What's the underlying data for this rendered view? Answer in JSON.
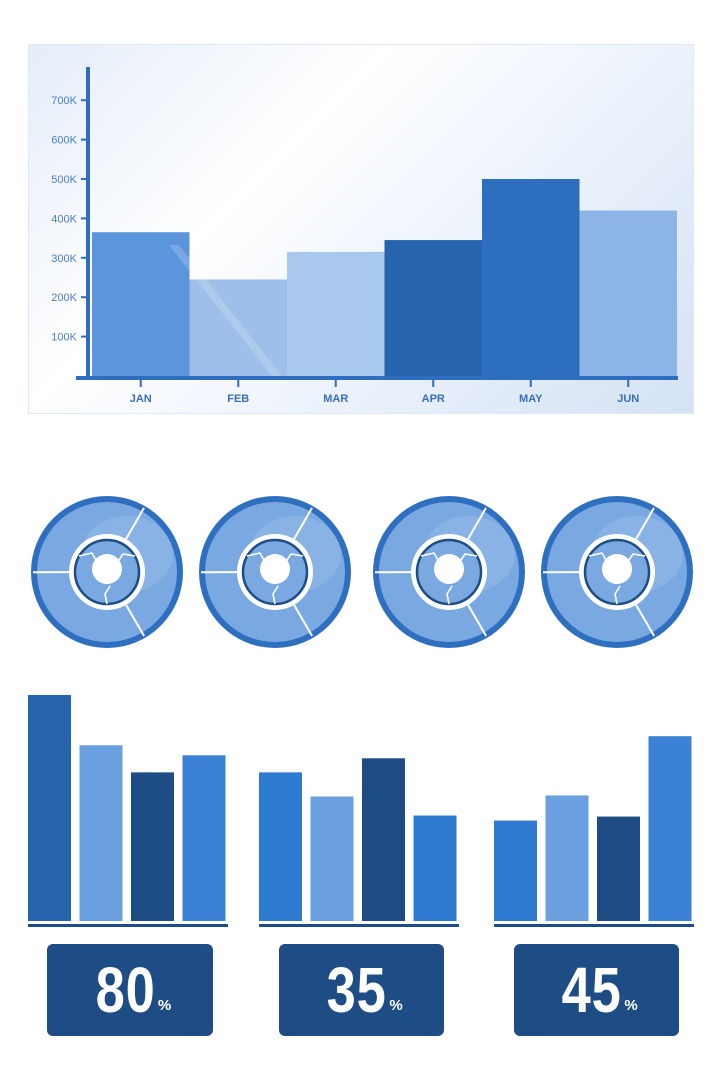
{
  "colors": {
    "axis": "#2e6dc0",
    "light": "#8db4e6",
    "medium": "#5f98dc",
    "bright": "#2e7ad0",
    "dark": "#1e4d85",
    "deep": "#2664ae",
    "ring_outer": "#2f6fc0",
    "ring_fill": "#7aa9e2"
  },
  "chart_data": [
    {
      "type": "bar",
      "categories": [
        "JAN",
        "FEB",
        "MAR",
        "APR",
        "MAY",
        "JUN"
      ],
      "values": [
        365000,
        245000,
        315000,
        345000,
        500000,
        420000
      ],
      "bar_colors": [
        "#5c95dc",
        "#9dbfe9",
        "#a9c8ee",
        "#2664ae",
        "#2c6fbf",
        "#8db4e6"
      ],
      "yticks": [
        "100K",
        "200K",
        "300K",
        "400K",
        "500K",
        "600K",
        "700K"
      ],
      "ylim": [
        0,
        800000
      ],
      "title": "",
      "xlabel": "",
      "ylabel": ""
    },
    {
      "type": "pie",
      "slices": [
        33.3,
        33.3,
        33.4
      ]
    },
    {
      "type": "pie",
      "slices": [
        33.3,
        33.3,
        33.4
      ]
    },
    {
      "type": "pie",
      "slices": [
        33.3,
        33.3,
        33.4
      ]
    },
    {
      "type": "pie",
      "slices": [
        33.3,
        33.3,
        33.4
      ]
    },
    {
      "type": "bar",
      "values": [
        225,
        175,
        148,
        165
      ],
      "bar_colors": [
        "#2664ae",
        "#6aa0e0",
        "#1e4d85",
        "#3b82d6"
      ],
      "ylim": [
        0,
        230
      ]
    },
    {
      "type": "bar",
      "values": [
        148,
        124,
        162,
        105
      ],
      "bar_colors": [
        "#2e7ad0",
        "#6aa0e0",
        "#1e4d85",
        "#2e7ad0"
      ],
      "ylim": [
        0,
        230
      ]
    },
    {
      "type": "bar",
      "values": [
        100,
        125,
        104,
        184
      ],
      "bar_colors": [
        "#2e7ad0",
        "#6aa0e0",
        "#1e4d85",
        "#3b82d6"
      ],
      "ylim": [
        0,
        230
      ]
    }
  ],
  "stats": [
    {
      "value": "80",
      "unit": "%"
    },
    {
      "value": "35",
      "unit": "%"
    },
    {
      "value": "45",
      "unit": "%"
    }
  ]
}
